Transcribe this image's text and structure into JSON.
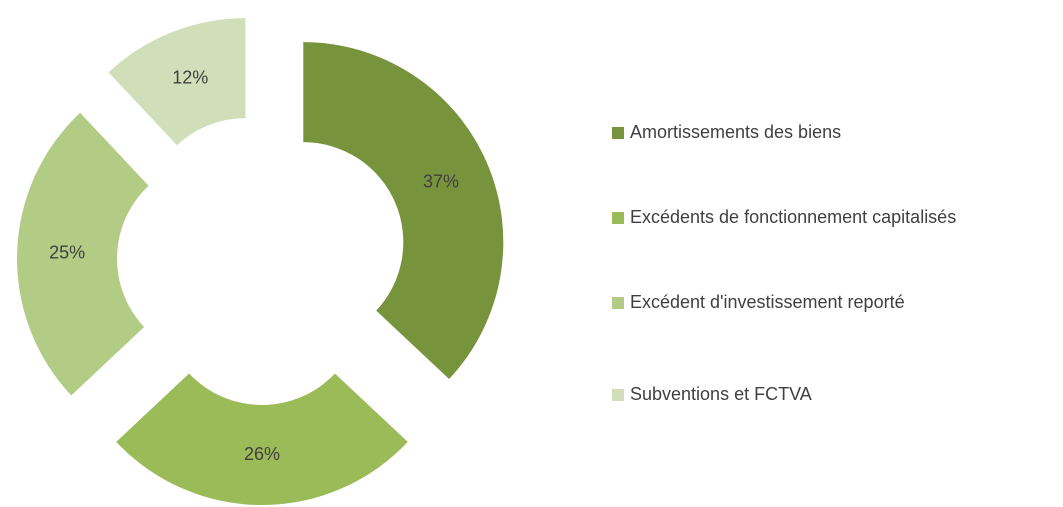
{
  "chart_data": {
    "type": "pie",
    "categories": [
      "Amortissements des biens",
      "Excédents de fonctionnement capitalisés",
      "Excédent d'investissement reporté",
      "Subventions et FCTVA"
    ],
    "values": [
      37,
      26,
      25,
      12
    ],
    "value_labels": [
      "37%",
      "26%",
      "25%",
      "12%"
    ],
    "colors": [
      "#77933c",
      "#9bbb59",
      "#b3cc85",
      "#d0dfba"
    ],
    "legend": "right"
  }
}
